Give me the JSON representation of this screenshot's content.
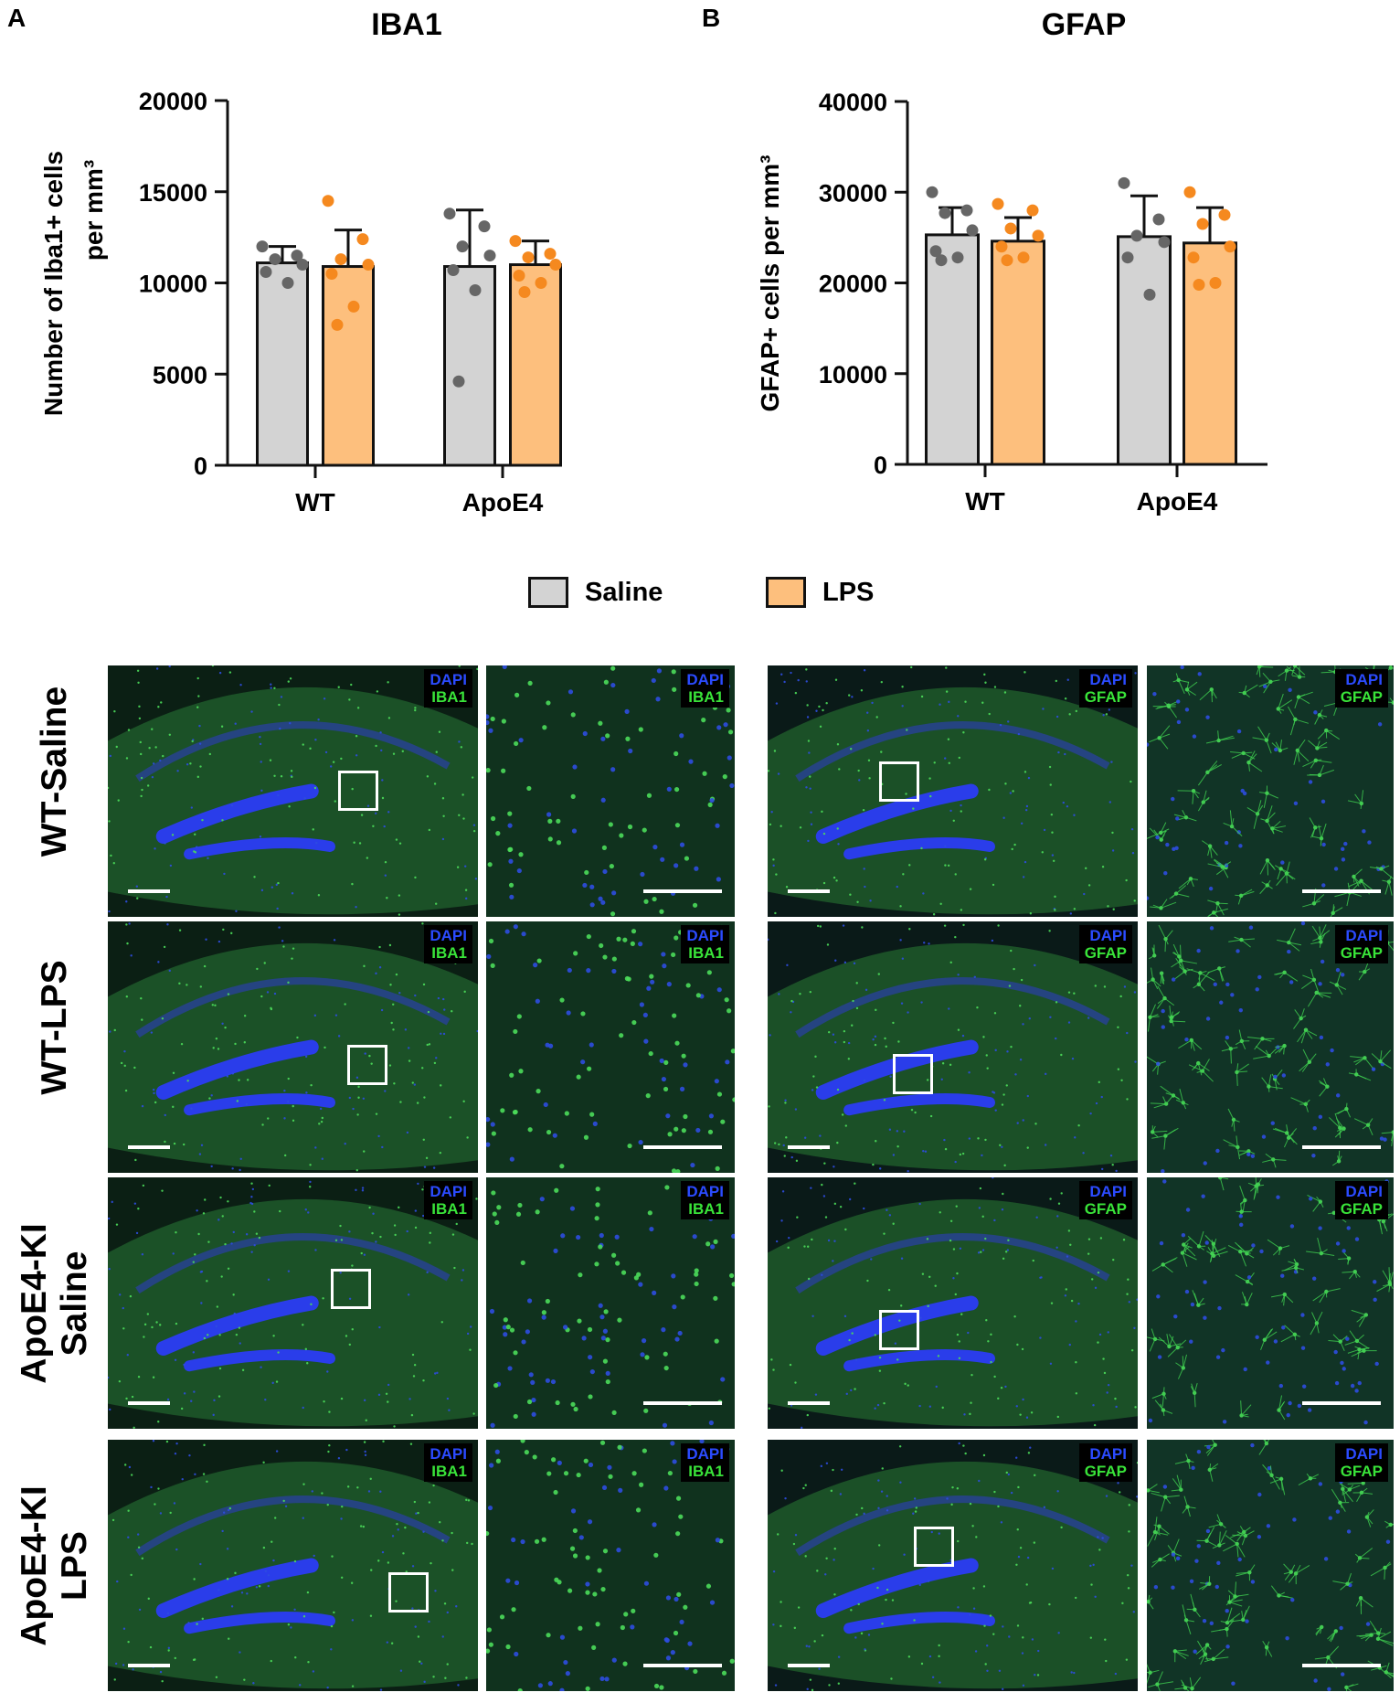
{
  "panels": {
    "a": {
      "letter": "A"
    },
    "b": {
      "letter": "B"
    }
  },
  "legend": {
    "items": [
      {
        "label": "Saline",
        "color": "#d3d3d3"
      },
      {
        "label": "LPS",
        "color": "#fdbf7d"
      }
    ]
  },
  "colors": {
    "saline_points": "#666666",
    "lps_points": "#f5891f",
    "dapi": "#2b4bff",
    "marker_green": "#39e339"
  },
  "chart_data": [
    {
      "type": "bar",
      "title": "IBA1",
      "ylabel": "Number of Iba1+ cells per mm³",
      "ylabel_lines": [
        "Number of Iba1+ cells",
        "per mm³"
      ],
      "categories": [
        "WT",
        "ApoE4"
      ],
      "ylim": [
        0,
        20000
      ],
      "yticks": [
        0,
        5000,
        10000,
        15000,
        20000
      ],
      "grid": false,
      "series": [
        {
          "name": "Saline",
          "values": [
            11100,
            10900
          ],
          "error": [
            900,
            3100
          ],
          "points": [
            [
              12000,
              11500,
              11300,
              11000,
              10600,
              10000
            ],
            [
              13800,
              13100,
              12000,
              11500,
              10700,
              9600,
              4600
            ]
          ]
        },
        {
          "name": "LPS",
          "values": [
            10900,
            11000
          ],
          "error": [
            2000,
            1300
          ],
          "points": [
            [
              14500,
              12400,
              11300,
              11000,
              10500,
              8700,
              7700
            ],
            [
              12300,
              11600,
              11400,
              11000,
              10400,
              10000,
              9500
            ]
          ]
        }
      ]
    },
    {
      "type": "bar",
      "title": "GFAP",
      "ylabel": "GFAP+ cells per mm³",
      "ylabel_lines": [
        "GFAP+ cells per mm³"
      ],
      "categories": [
        "WT",
        "ApoE4"
      ],
      "ylim": [
        0,
        40000
      ],
      "yticks": [
        0,
        10000,
        20000,
        30000,
        40000
      ],
      "grid": false,
      "series": [
        {
          "name": "Saline",
          "values": [
            25300,
            25100
          ],
          "error": [
            3000,
            4500
          ],
          "points": [
            [
              30000,
              28000,
              27700,
              25800,
              23500,
              22800,
              22500
            ],
            [
              31000,
              27000,
              25200,
              24500,
              22800,
              18700
            ]
          ]
        },
        {
          "name": "LPS",
          "values": [
            24600,
            24400
          ],
          "error": [
            2600,
            3900
          ],
          "points": [
            [
              28700,
              28000,
              26000,
              25200,
              24000,
              22800,
              22500
            ],
            [
              30000,
              27500,
              26500,
              24000,
              22800,
              20000,
              19800
            ]
          ]
        }
      ]
    }
  ],
  "micrographs": {
    "rows": [
      {
        "label_lines": [
          "WT-Saline"
        ]
      },
      {
        "label_lines": [
          "WT-LPS"
        ]
      },
      {
        "label_lines": [
          "ApoE4-KI",
          "Saline"
        ]
      },
      {
        "label_lines": [
          "ApoE4-KI",
          "LPS"
        ]
      }
    ],
    "iba1_stain": {
      "dapi": "DAPI",
      "marker": "IBA1"
    },
    "gfap_stain": {
      "dapi": "DAPI",
      "marker": "GFAP"
    }
  }
}
